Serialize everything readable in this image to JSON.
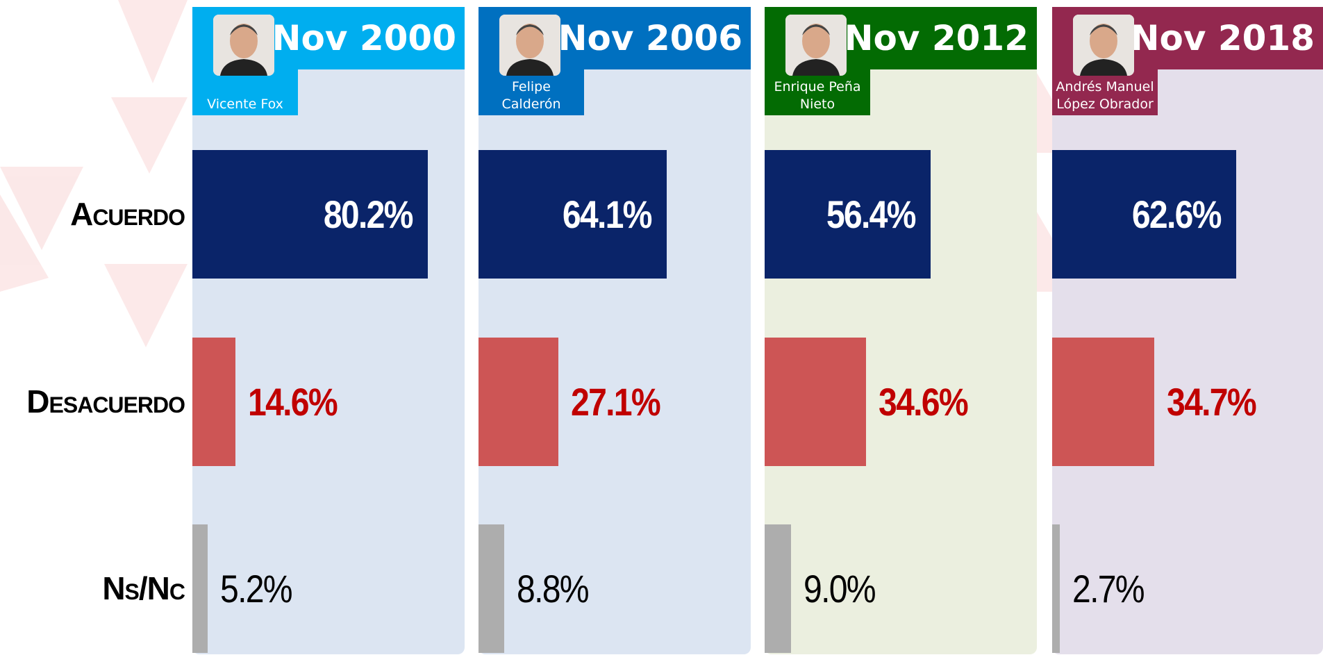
{
  "chart_data": {
    "type": "bar",
    "orientation": "horizontal",
    "categories": [
      "Acuerdo",
      "Desacuerdo",
      "Ns/Nc"
    ],
    "colors": [
      "#0a2469",
      "#cd5555",
      "#adadad"
    ],
    "label_colors": [
      "#ffffff",
      "#c00000",
      "#000000"
    ],
    "xlim": [
      0,
      100
    ],
    "series": [
      {
        "name": "Nov 2000",
        "president": "Vicente Fox",
        "color": "#00aeef",
        "panel_color": "#dce5f2",
        "values": [
          80.2,
          14.6,
          5.2
        ],
        "value_labels": [
          "80.2%",
          "14.6%",
          "5.2%"
        ]
      },
      {
        "name": "Nov 2006",
        "president": "Felipe Calderón",
        "color": "#0070c0",
        "panel_color": "#dce5f2",
        "values": [
          64.1,
          27.1,
          8.8
        ],
        "value_labels": [
          "64.1%",
          "27.1%",
          "8.8%"
        ]
      },
      {
        "name": "Nov 2012",
        "president": "Enrique Peña Nieto",
        "color": "#036b03",
        "panel_color": "#ebefdf",
        "values": [
          56.4,
          34.6,
          9.0
        ],
        "value_labels": [
          "56.4%",
          "34.6%",
          "9.0%"
        ]
      },
      {
        "name": "Nov 2018",
        "president": "Andrés Manuel López Obrador",
        "color": "#93284f",
        "panel_color": "#e4dfeb",
        "values": [
          62.6,
          34.7,
          2.7
        ],
        "value_labels": [
          "62.6%",
          "34.7%",
          "2.7%"
        ]
      }
    ]
  }
}
